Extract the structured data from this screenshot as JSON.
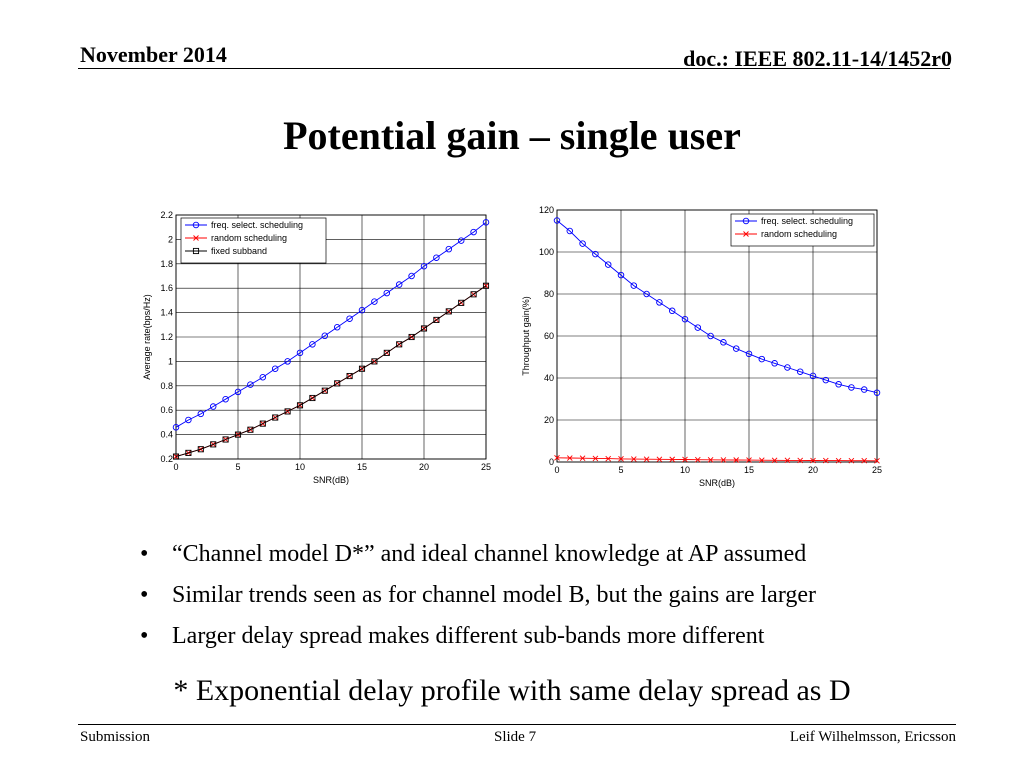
{
  "header": {
    "date": "November 2014",
    "doc_id": "doc.: IEEE 802.11-14/1452r0"
  },
  "slide_title": "Potential gain – single user",
  "bullets": [
    "“Channel model D*” and ideal channel knowledge at AP assumed",
    "Similar trends seen as for channel model B, but the gains are larger",
    "Larger delay spread makes different sub-bands more different"
  ],
  "bullet_marker": "•",
  "footnote": "* Exponential delay profile with same delay spread as D",
  "footer": {
    "left": "Submission",
    "center": "Slide 7",
    "right": "Leif Wilhelmsson, Ericsson"
  },
  "chart_data": [
    {
      "type": "line",
      "xlabel": "SNR(dB)",
      "ylabel": "Average rate(bps/Hz)",
      "xlim": [
        0,
        25
      ],
      "ylim": [
        0.2,
        2.2
      ],
      "xticks": [
        0,
        5,
        10,
        15,
        20,
        25
      ],
      "yticks": [
        0.2,
        0.4,
        0.6,
        0.8,
        1,
        1.2,
        1.4,
        1.6,
        1.8,
        2,
        2.2
      ],
      "grid": true,
      "legend": "top-left",
      "x": [
        0,
        1,
        2,
        3,
        4,
        5,
        6,
        7,
        8,
        9,
        10,
        11,
        12,
        13,
        14,
        15,
        16,
        17,
        18,
        19,
        20,
        21,
        22,
        23,
        24,
        25
      ],
      "series": [
        {
          "name": "freq. select. scheduling",
          "color": "#0000ff",
          "marker": "circle",
          "values": [
            0.46,
            0.52,
            0.57,
            0.63,
            0.69,
            0.75,
            0.81,
            0.87,
            0.94,
            1.0,
            1.07,
            1.14,
            1.21,
            1.28,
            1.35,
            1.42,
            1.49,
            1.56,
            1.63,
            1.7,
            1.78,
            1.85,
            1.92,
            1.99,
            2.06,
            2.14
          ]
        },
        {
          "name": "random scheduling",
          "color": "#ff0000",
          "marker": "x",
          "values": [
            0.22,
            0.25,
            0.28,
            0.32,
            0.36,
            0.4,
            0.44,
            0.49,
            0.54,
            0.59,
            0.64,
            0.7,
            0.76,
            0.82,
            0.88,
            0.94,
            1.0,
            1.07,
            1.14,
            1.2,
            1.27,
            1.34,
            1.41,
            1.48,
            1.55,
            1.62
          ]
        },
        {
          "name": "fixed subband",
          "color": "#000000",
          "marker": "square",
          "values": [
            0.22,
            0.25,
            0.28,
            0.32,
            0.36,
            0.4,
            0.44,
            0.49,
            0.54,
            0.59,
            0.64,
            0.7,
            0.76,
            0.82,
            0.88,
            0.94,
            1.0,
            1.07,
            1.14,
            1.2,
            1.27,
            1.34,
            1.41,
            1.48,
            1.55,
            1.62
          ]
        }
      ]
    },
    {
      "type": "line",
      "xlabel": "SNR(dB)",
      "ylabel": "Throughput gain(%)",
      "xlim": [
        0,
        25
      ],
      "ylim": [
        0,
        120
      ],
      "xticks": [
        0,
        5,
        10,
        15,
        20,
        25
      ],
      "yticks": [
        0,
        20,
        40,
        60,
        80,
        100,
        120
      ],
      "grid": true,
      "legend": "top-right",
      "x": [
        0,
        1,
        2,
        3,
        4,
        5,
        6,
        7,
        8,
        9,
        10,
        11,
        12,
        13,
        14,
        15,
        16,
        17,
        18,
        19,
        20,
        21,
        22,
        23,
        24,
        25
      ],
      "series": [
        {
          "name": "freq. select. scheduling",
          "color": "#0000ff",
          "marker": "circle",
          "values": [
            115,
            110,
            104,
            99,
            94,
            89,
            84,
            80,
            76,
            72,
            68,
            64,
            60,
            57,
            54,
            51.5,
            49,
            47,
            45,
            43,
            41,
            39,
            37,
            35.5,
            34.5,
            33
          ]
        },
        {
          "name": "random scheduling",
          "color": "#ff0000",
          "marker": "x",
          "values": [
            2,
            1.9,
            1.8,
            1.7,
            1.6,
            1.5,
            1.4,
            1.35,
            1.3,
            1.25,
            1.2,
            1.1,
            1.05,
            1,
            0.95,
            0.9,
            0.85,
            0.8,
            0.78,
            0.75,
            0.7,
            0.68,
            0.65,
            0.62,
            0.6,
            0.58
          ]
        }
      ]
    }
  ]
}
